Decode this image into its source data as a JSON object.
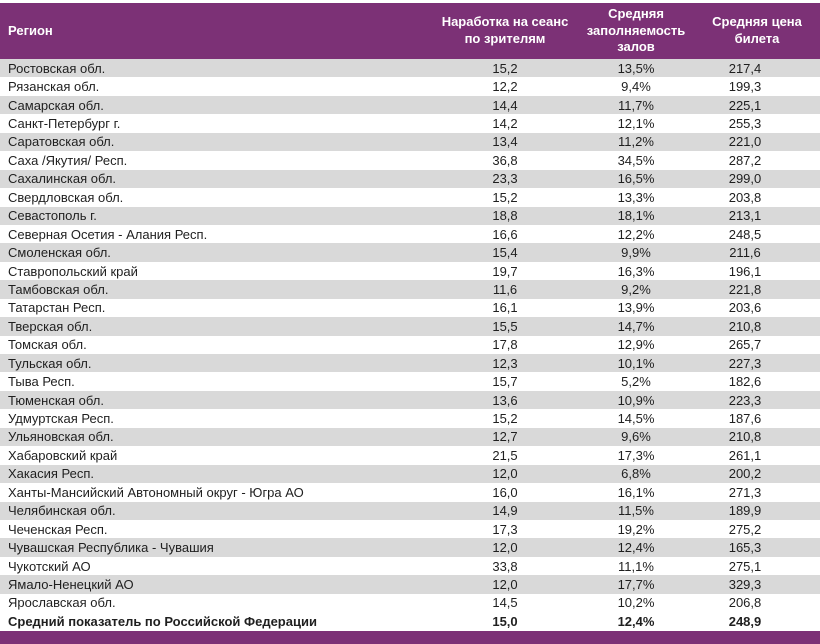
{
  "colors": {
    "accent": "#7C3176",
    "stripe": "#D9D9D9",
    "row_text": "#1F1F1F",
    "header_text": "#FFFFFF"
  },
  "chart_data": {
    "type": "table",
    "columns": [
      "Регион",
      "Наработка на сеанс по зрителям",
      "Средняя заполняемость залов",
      "Средняя цена билета"
    ],
    "rows": [
      [
        "Ростовская обл.",
        "15,2",
        "13,5%",
        "217,4"
      ],
      [
        "Рязанская обл.",
        "12,2",
        "9,4%",
        "199,3"
      ],
      [
        "Самарская обл.",
        "14,4",
        "11,7%",
        "225,1"
      ],
      [
        "Санкт-Петербург г.",
        "14,2",
        "12,1%",
        "255,3"
      ],
      [
        "Саратовская обл.",
        "13,4",
        "11,2%",
        "221,0"
      ],
      [
        "Саха /Якутия/ Респ.",
        "36,8",
        "34,5%",
        "287,2"
      ],
      [
        "Сахалинская обл.",
        "23,3",
        "16,5%",
        "299,0"
      ],
      [
        "Свердловская обл.",
        "15,2",
        "13,3%",
        "203,8"
      ],
      [
        "Севастополь г.",
        "18,8",
        "18,1%",
        "213,1"
      ],
      [
        "Северная Осетия - Алания Респ.",
        "16,6",
        "12,2%",
        "248,5"
      ],
      [
        "Смоленская обл.",
        "15,4",
        "9,9%",
        "211,6"
      ],
      [
        "Ставропольский край",
        "19,7",
        "16,3%",
        "196,1"
      ],
      [
        "Тамбовская обл.",
        "11,6",
        "9,2%",
        "221,8"
      ],
      [
        "Татарстан Респ.",
        "16,1",
        "13,9%",
        "203,6"
      ],
      [
        "Тверская обл.",
        "15,5",
        "14,7%",
        "210,8"
      ],
      [
        "Томская обл.",
        "17,8",
        "12,9%",
        "265,7"
      ],
      [
        "Тульская обл.",
        "12,3",
        "10,1%",
        "227,3"
      ],
      [
        "Тыва Респ.",
        "15,7",
        "5,2%",
        "182,6"
      ],
      [
        "Тюменская обл.",
        "13,6",
        "10,9%",
        "223,3"
      ],
      [
        "Удмуртская Респ.",
        "15,2",
        "14,5%",
        "187,6"
      ],
      [
        "Ульяновская обл.",
        "12,7",
        "9,6%",
        "210,8"
      ],
      [
        "Хабаровский край",
        "21,5",
        "17,3%",
        "261,1"
      ],
      [
        "Хакасия Респ.",
        "12,0",
        "6,8%",
        "200,2"
      ],
      [
        "Ханты-Мансийский Автономный округ - Югра АО",
        "16,0",
        "16,1%",
        "271,3"
      ],
      [
        "Челябинская обл.",
        "14,9",
        "11,5%",
        "189,9"
      ],
      [
        "Чеченская Респ.",
        "17,3",
        "19,2%",
        "275,2"
      ],
      [
        "Чувашская Республика - Чувашия",
        "12,0",
        "12,4%",
        "165,3"
      ],
      [
        "Чукотский АО",
        "33,8",
        "11,1%",
        "275,1"
      ],
      [
        "Ямало-Ненецкий АО",
        "12,0",
        "17,7%",
        "329,3"
      ],
      [
        "Ярославская обл.",
        "14,5",
        "10,2%",
        "206,8"
      ]
    ],
    "total_row": [
      "Средний показатель по Российской Федерации",
      "15,0",
      "12,4%",
      "248,9"
    ],
    "layout": {
      "striping": "odd rows gray starting with first data row",
      "legend": "none",
      "grid": "off"
    }
  }
}
